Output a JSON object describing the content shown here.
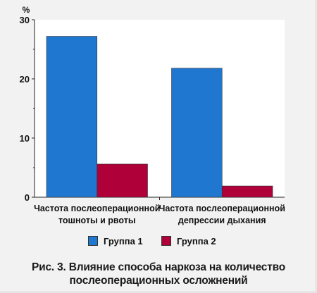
{
  "chart_data": {
    "type": "bar",
    "title": "",
    "ylabel": "%",
    "xlabel": "",
    "ylim": [
      0,
      30
    ],
    "yticks": [
      "0",
      "10",
      "20",
      "30"
    ],
    "categories": [
      [
        "Частота послеоперационной",
        "тошноты и рвоты"
      ],
      [
        "Частота послеоперационной",
        "депрессии дыхания"
      ]
    ],
    "series": [
      {
        "name": "Группа 1",
        "values": [
          27.2,
          21.8
        ],
        "color": "#1f77d0"
      },
      {
        "name": "Группа 2",
        "values": [
          5.6,
          1.9
        ],
        "color": "#b0003a"
      }
    ],
    "grid": false,
    "legend_position": "bottom"
  },
  "caption": {
    "line1": "Рис. 3. Влияние способа наркоза на количество",
    "line2": "послеоперационных осложнений"
  }
}
